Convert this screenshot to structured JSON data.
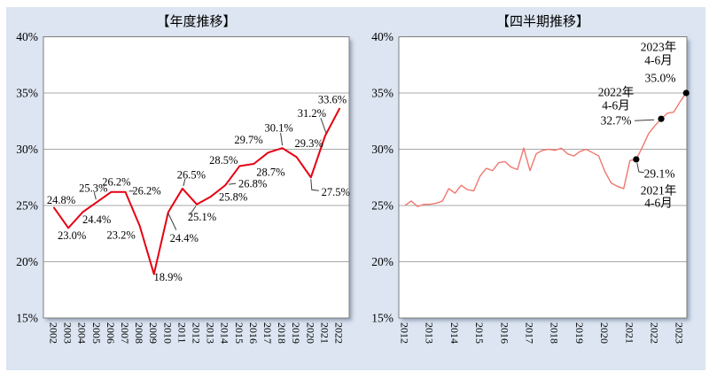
{
  "panel": {
    "background_color": "#dce5f1"
  },
  "chart_data": [
    {
      "name": "annual-trend",
      "type": "line",
      "title": "【年度推移】",
      "categories": [
        "2002",
        "2003",
        "2004",
        "2005",
        "2006",
        "2007",
        "2008",
        "2009",
        "2010",
        "2011",
        "2012",
        "2013",
        "2014",
        "2015",
        "2016",
        "2017",
        "2018",
        "2019",
        "2020",
        "2021",
        "2022"
      ],
      "values": [
        24.8,
        23.0,
        24.4,
        25.3,
        26.2,
        26.2,
        23.2,
        18.9,
        24.4,
        26.5,
        25.1,
        25.8,
        26.8,
        28.5,
        28.7,
        29.7,
        30.1,
        29.3,
        27.5,
        31.2,
        33.6
      ],
      "value_labels": [
        "24.8%",
        "23.0%",
        "24.4%",
        "25.3%",
        "26.2%",
        "26.2%",
        "23.2%",
        "18.9%",
        "24.4%",
        "26.5%",
        "25.1%",
        "25.8%",
        "26.8%",
        "28.5%",
        "28.7%",
        "29.7%",
        "30.1%",
        "29.3%",
        "27.5%",
        "31.2%",
        "33.6%"
      ],
      "ylim": [
        15,
        40
      ],
      "y_tick_step": 5,
      "y_tick_labels": [
        "40%",
        "35%",
        "30%",
        "25%",
        "20%",
        "15%"
      ],
      "grid": "horizontal",
      "legend": "none",
      "line_color": "#e60012"
    },
    {
      "name": "quarterly-trend",
      "type": "line",
      "title": "【四半期推移】",
      "x_range": "2012 Q1 - 2023 Q2 (quarterly)",
      "x_tick_labels": [
        "2012",
        "2013",
        "2014",
        "2015",
        "2016",
        "2017",
        "2018",
        "2019",
        "2020",
        "2021",
        "2022",
        "2023"
      ],
      "values": [
        25.0,
        25.4,
        24.9,
        25.1,
        25.1,
        25.2,
        25.4,
        26.5,
        26.1,
        26.8,
        26.4,
        26.3,
        27.6,
        28.3,
        28.1,
        28.8,
        28.9,
        28.4,
        28.2,
        30.1,
        28.1,
        29.6,
        29.9,
        30.0,
        29.9,
        30.1,
        29.6,
        29.4,
        29.8,
        30.0,
        29.7,
        29.4,
        28.0,
        27.0,
        26.7,
        26.5,
        29.0,
        29.1,
        30.2,
        31.4,
        32.1,
        32.7,
        33.2,
        33.3,
        34.2,
        35.0
      ],
      "ylim": [
        15,
        40
      ],
      "y_tick_step": 5,
      "y_tick_labels": [
        "40%",
        "35%",
        "30%",
        "25%",
        "20%",
        "15%"
      ],
      "grid": "horizontal",
      "legend": "none",
      "line_color": "#f0786f",
      "marker_color": "#000000",
      "annotations": [
        {
          "point_index": 37,
          "year_label": "2021年",
          "quarter_label": "4-6月",
          "value_label": "29.1%"
        },
        {
          "point_index": 41,
          "year_label": "2022年",
          "quarter_label": "4-6月",
          "value_label": "32.7%"
        },
        {
          "point_index": 45,
          "year_label": "2023年",
          "quarter_label": "4-6月",
          "value_label": "35.0%"
        }
      ]
    }
  ]
}
